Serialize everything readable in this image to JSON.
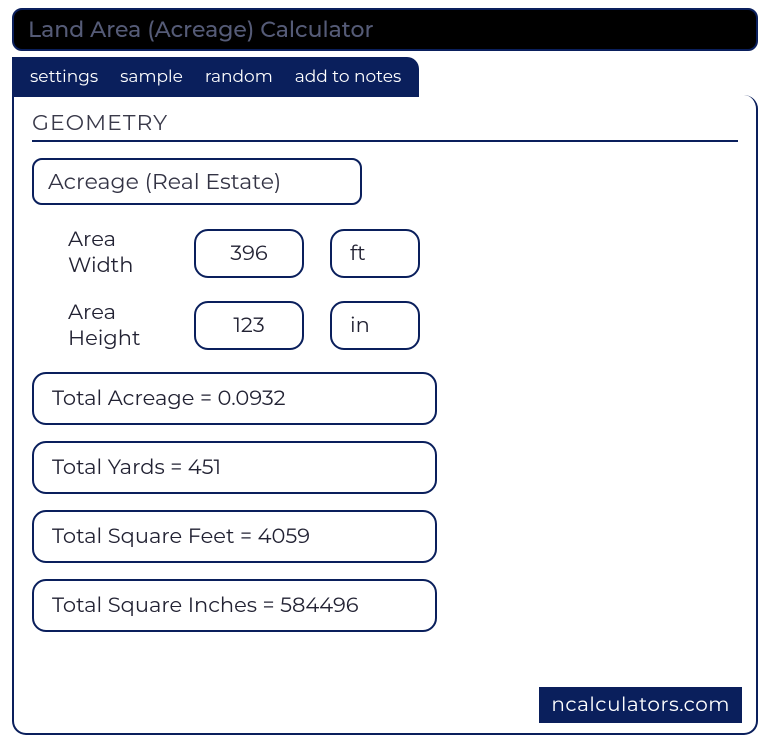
{
  "title": "Land Area (Acreage) Calculator",
  "tabs": {
    "settings": "settings",
    "sample": "sample",
    "random": "random",
    "add_to_notes": "add to notes"
  },
  "section_header": "GEOMETRY",
  "calc_title": "Acreage (Real Estate)",
  "inputs": {
    "width": {
      "label": "Area Width",
      "value": "396",
      "unit": "ft"
    },
    "height": {
      "label": "Area Height",
      "value": "123",
      "unit": "in"
    }
  },
  "results": {
    "acreage": "Total Acreage  =  0.0932",
    "yards": "Total Yards  =  451",
    "sqft": "Total Square Feet  =  4059",
    "sqin": "Total Square Inches  =  584496"
  },
  "watermark": "ncalculators.com",
  "colors": {
    "primary": "#0a1f5c",
    "title_bg": "#000000",
    "title_text": "#555b77",
    "text": "#222233",
    "background": "#ffffff"
  }
}
